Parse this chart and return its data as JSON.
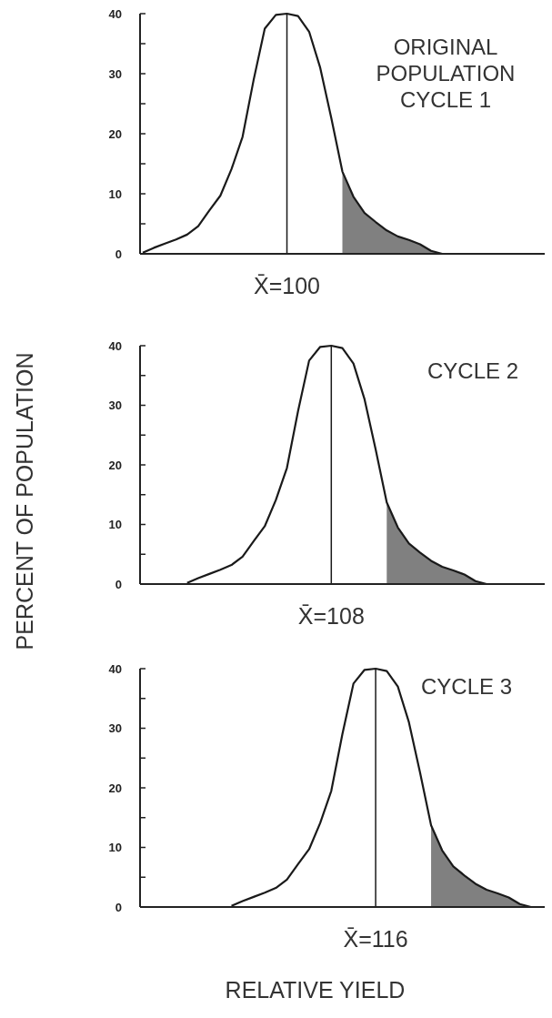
{
  "chart_data": [
    {
      "type": "line",
      "title": "ORIGINAL POPULATION CYCLE 1",
      "categories": [
        null,
        null,
        null,
        null,
        null,
        null,
        null,
        null,
        null,
        null,
        null,
        null,
        null,
        null,
        null,
        null,
        null,
        null,
        null,
        null,
        null,
        null,
        null,
        null,
        null,
        null,
        null,
        null,
        null,
        null,
        null,
        null,
        null,
        null,
        null,
        null,
        null
      ],
      "ylim": [
        0,
        40
      ],
      "yticks": [
        0,
        {
          "value": 5,
          "label": null
        },
        10,
        {
          "value": 15,
          "label": null
        },
        20,
        {
          "value": 25,
          "label": null
        },
        30,
        {
          "value": 35,
          "label": null
        },
        40
      ],
      "tick_labels": "y",
      "series": [
        {
          "color": "#1a1a1a",
          "values": [
            0.2,
            1.0,
            1.7,
            2.4,
            3.2,
            4.6,
            7.2,
            9.7,
            14.1,
            19.5,
            29,
            37.5,
            39.8,
            40,
            39.6,
            37,
            31,
            22.6,
            13.7,
            9.5,
            6.8,
            5.3,
            3.9,
            2.9,
            2.3,
            1.6,
            0.5,
            0,
            null,
            null,
            null,
            null,
            null,
            null,
            null,
            null,
            null
          ]
        },
        {
          "type": "area",
          "color": "#808080",
          "values": [
            null,
            null,
            null,
            null,
            null,
            null,
            null,
            null,
            null,
            null,
            null,
            null,
            null,
            null,
            null,
            null,
            null,
            null,
            13.7,
            9.5,
            6.8,
            5.3,
            3.9,
            2.9,
            2.3,
            1.6,
            0.5,
            0,
            null,
            null,
            null,
            null,
            null,
            null,
            null,
            null,
            null
          ]
        }
      ],
      "annotations": [
        "X̄=100"
      ]
    },
    {
      "type": "line",
      "title": "CYCLE 2",
      "ylabel": "PERCENT OF POPULATION",
      "categories": [
        null,
        null,
        null,
        null,
        null,
        null,
        null,
        null,
        null,
        null,
        null,
        null,
        null,
        null,
        null,
        null,
        null,
        null,
        null,
        null,
        null,
        null,
        null,
        null,
        null,
        null,
        null,
        null,
        null,
        null,
        null,
        null,
        null,
        null,
        null,
        null,
        null
      ],
      "ylim": [
        0,
        40
      ],
      "yticks": [
        0,
        {
          "value": 5,
          "label": null
        },
        10,
        {
          "value": 15,
          "label": null
        },
        20,
        {
          "value": 25,
          "label": null
        },
        30,
        {
          "value": 35,
          "label": null
        },
        40
      ],
      "tick_labels": "y",
      "series": [
        {
          "color": "#1a1a1a",
          "values": [
            null,
            null,
            null,
            null,
            0.2,
            1.0,
            1.7,
            2.4,
            3.2,
            4.6,
            7.2,
            9.7,
            14.1,
            19.5,
            29,
            37.5,
            39.8,
            40,
            39.6,
            37,
            31,
            22.6,
            13.7,
            9.5,
            6.8,
            5.3,
            3.9,
            2.9,
            2.3,
            1.6,
            0.5,
            0,
            null,
            null,
            null,
            null,
            null
          ]
        },
        {
          "type": "area",
          "color": "#808080",
          "values": [
            null,
            null,
            null,
            null,
            null,
            null,
            null,
            null,
            null,
            null,
            null,
            null,
            null,
            null,
            null,
            null,
            null,
            null,
            null,
            null,
            null,
            null,
            13.7,
            9.5,
            6.8,
            5.3,
            3.9,
            2.9,
            2.3,
            1.6,
            0.5,
            0,
            null,
            null,
            null,
            null,
            null
          ]
        }
      ],
      "annotations": [
        "X̄=108"
      ]
    },
    {
      "type": "line",
      "title": "CYCLE 3",
      "xlabel": "RELATIVE YIELD",
      "categories": [
        null,
        null,
        null,
        null,
        null,
        null,
        null,
        null,
        null,
        null,
        null,
        null,
        null,
        null,
        null,
        null,
        null,
        null,
        null,
        null,
        null,
        null,
        null,
        null,
        null,
        null,
        null,
        null,
        null,
        null,
        null,
        null,
        null,
        null,
        null,
        null,
        null
      ],
      "ylim": [
        0,
        40
      ],
      "yticks": [
        0,
        {
          "value": 5,
          "label": null
        },
        10,
        {
          "value": 15,
          "label": null
        },
        20,
        {
          "value": 25,
          "label": null
        },
        30,
        {
          "value": 35,
          "label": null
        },
        40
      ],
      "tick_labels": "y",
      "series": [
        {
          "color": "#1a1a1a",
          "values": [
            null,
            null,
            null,
            null,
            null,
            null,
            null,
            null,
            0.2,
            1.0,
            1.7,
            2.4,
            3.2,
            4.6,
            7.2,
            9.7,
            14.1,
            19.5,
            29,
            37.5,
            39.8,
            40,
            39.6,
            37,
            31,
            22.6,
            13.7,
            9.5,
            6.8,
            5.3,
            3.9,
            2.9,
            2.3,
            1.6,
            0.5,
            0,
            null
          ]
        },
        {
          "type": "area",
          "color": "#808080",
          "values": [
            null,
            null,
            null,
            null,
            null,
            null,
            null,
            null,
            null,
            null,
            null,
            null,
            null,
            null,
            null,
            null,
            null,
            null,
            null,
            null,
            null,
            null,
            null,
            null,
            null,
            null,
            13.7,
            9.5,
            6.8,
            5.3,
            3.9,
            2.9,
            2.3,
            1.6,
            0.5,
            0,
            null
          ]
        }
      ],
      "annotations": [
        "X̄=116"
      ]
    }
  ]
}
